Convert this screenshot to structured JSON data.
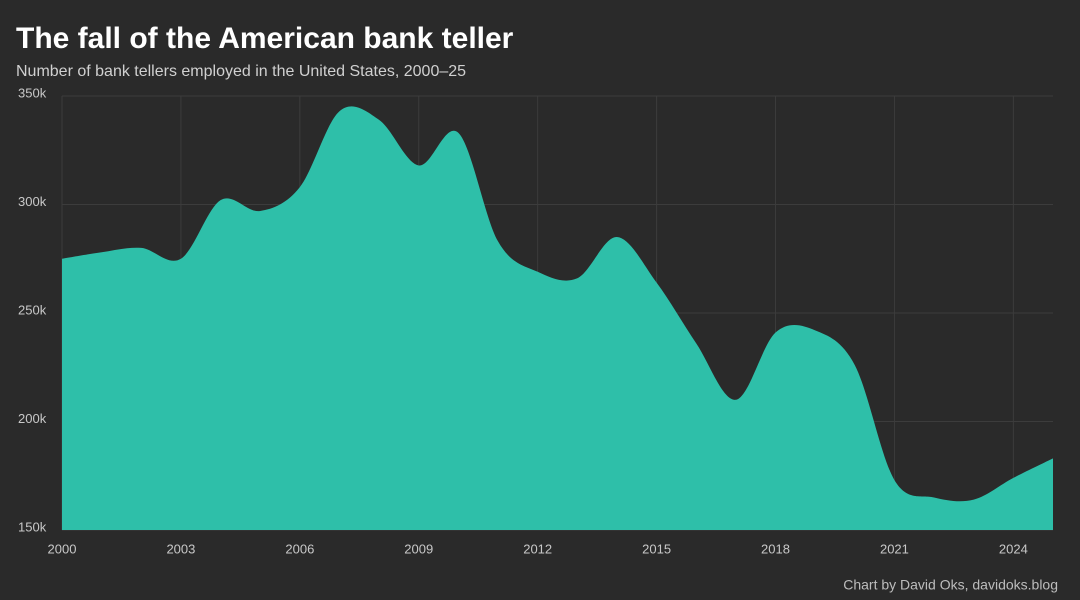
{
  "chart_data": {
    "type": "area",
    "title": "The fall of the American bank teller",
    "subtitle": "Number of bank tellers employed in the United States, 2000–25",
    "credit": "Chart by David Oks, davidoks.blog",
    "x": [
      2000,
      2001,
      2002,
      2003,
      2004,
      2005,
      2006,
      2007,
      2008,
      2009,
      2010,
      2011,
      2012,
      2013,
      2014,
      2015,
      2016,
      2017,
      2018,
      2019,
      2020,
      2021,
      2022,
      2023,
      2024,
      2025
    ],
    "values": [
      275000,
      278000,
      280000,
      275000,
      302000,
      297000,
      308000,
      343000,
      339000,
      318000,
      333000,
      283000,
      269000,
      266000,
      285000,
      264000,
      236000,
      210000,
      241000,
      242000,
      226000,
      173000,
      165000,
      164000,
      174000,
      183000
    ],
    "color": "#2ebfa9",
    "xlim": [
      2000,
      2025
    ],
    "xticks": [
      2000,
      2003,
      2006,
      2009,
      2012,
      2015,
      2018,
      2021,
      2024
    ],
    "ylim": [
      150000,
      350000
    ],
    "yticks": [
      {
        "value": 150000,
        "label": "150k"
      },
      {
        "value": 200000,
        "label": "200k"
      },
      {
        "value": 250000,
        "label": "250k"
      },
      {
        "value": 300000,
        "label": "300k"
      },
      {
        "value": 350000,
        "label": "350k"
      }
    ],
    "grid": true
  }
}
